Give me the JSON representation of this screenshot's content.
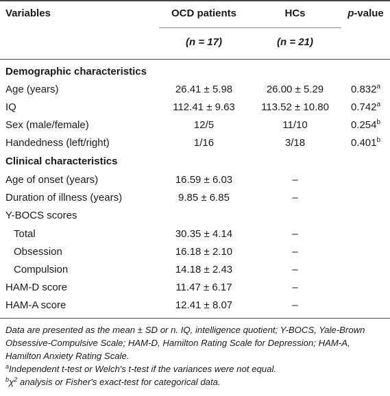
{
  "header": {
    "col1": "Variables",
    "col2": "OCD patients",
    "col3": "HCs",
    "col4_p": "p",
    "col4_rest": "-value",
    "n_ocd": "(n = 17)",
    "n_hc": "(n = 21)"
  },
  "sections": {
    "demographic": "Demographic characteristics",
    "clinical": "Clinical characteristics"
  },
  "rows": [
    {
      "label": "Age (years)",
      "ocd": "26.41 ± 5.98",
      "hc": "26.00 ± 5.29",
      "p": "0.832",
      "sup": "a"
    },
    {
      "label": "IQ",
      "ocd": "112.41 ± 9.63",
      "hc": "113.52 ± 10.80",
      "p": "0.742",
      "sup": "a"
    },
    {
      "label": "Sex (male/female)",
      "ocd": "12/5",
      "hc": "11/10",
      "p": "0.254",
      "sup": "b"
    },
    {
      "label": "Handedness (left/right)",
      "ocd": "1/16",
      "hc": "3/18",
      "p": "0.401",
      "sup": "b"
    },
    {
      "label": "Age of onset (years)",
      "ocd": "16.59 ± 6.03",
      "hc": "–",
      "p": "",
      "sup": ""
    },
    {
      "label": "Duration of illness (years)",
      "ocd": "9.85 ± 6.85",
      "hc": "–",
      "p": "",
      "sup": ""
    },
    {
      "label": "Y-BOCS scores",
      "ocd": "",
      "hc": "",
      "p": "",
      "sup": ""
    },
    {
      "label": "Total",
      "ocd": "30.35 ± 4.14",
      "hc": "–",
      "p": "",
      "sup": ""
    },
    {
      "label": "Obsession",
      "ocd": "16.18 ± 2.10",
      "hc": "–",
      "p": "",
      "sup": ""
    },
    {
      "label": "Compulsion",
      "ocd": "14.18 ± 2.43",
      "hc": "–",
      "p": "",
      "sup": ""
    },
    {
      "label": "HAM-D score",
      "ocd": "11.47 ± 6.17",
      "hc": "–",
      "p": "",
      "sup": ""
    },
    {
      "label": "HAM-A score",
      "ocd": "12.41 ± 8.07",
      "hc": "–",
      "p": "",
      "sup": ""
    }
  ],
  "notes": {
    "main_1": "Data are presented as the mean ± SD or n. IQ, intelligence quotient; Y-BOCS, Yale-Brown",
    "main_2": "Obsessive-Compulsive Scale; HAM-D, Hamilton Rating Scale for Depression; HAM-A,",
    "main_3": "Hamilton Anxiety Rating Scale.",
    "a_mark": "a",
    "a_text": "Independent t-test or Welch's t-test if the variances were not equal.",
    "b_mark": "b",
    "b_text": "χ",
    "b_sup2": "2",
    "b_rest": " analysis or Fisher's exact-test for categorical data."
  }
}
